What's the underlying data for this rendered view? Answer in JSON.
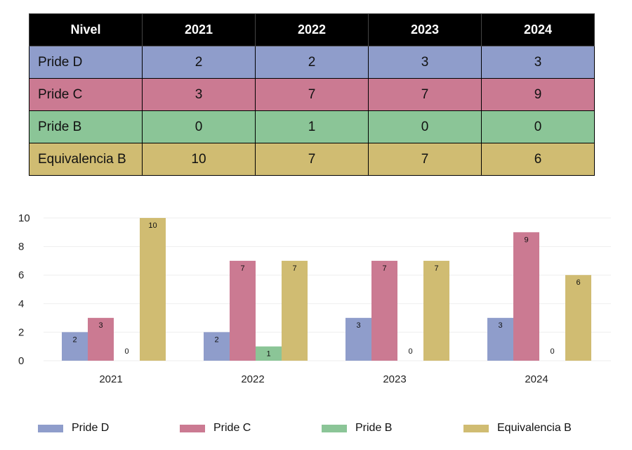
{
  "table": {
    "headers": [
      "Nivel",
      "2021",
      "2022",
      "2023",
      "2024"
    ],
    "rows": [
      {
        "label": "Pride D",
        "values": [
          "2",
          "2",
          "3",
          "3"
        ],
        "color": "#8f9dcb"
      },
      {
        "label": "Pride C",
        "values": [
          "3",
          "7",
          "7",
          "9"
        ],
        "color": "#cb7a92"
      },
      {
        "label": "Pride B",
        "values": [
          "0",
          "1",
          "0",
          "0"
        ],
        "color": "#8bc597"
      },
      {
        "label": "Equivalencia B",
        "values": [
          "10",
          "7",
          "7",
          "6"
        ],
        "color": "#d0bc72"
      }
    ]
  },
  "chart_data": {
    "type": "bar",
    "categories": [
      "2021",
      "2022",
      "2023",
      "2024"
    ],
    "series": [
      {
        "name": "Pride D",
        "values": [
          2,
          2,
          3,
          3
        ],
        "color": "#8f9dcb"
      },
      {
        "name": "Pride C",
        "values": [
          3,
          7,
          7,
          9
        ],
        "color": "#cb7a92"
      },
      {
        "name": "Pride B",
        "values": [
          0,
          1,
          0,
          0
        ],
        "color": "#8bc597"
      },
      {
        "name": "Equivalencia B",
        "values": [
          10,
          7,
          7,
          6
        ],
        "color": "#d0bc72"
      }
    ],
    "yticks": [
      0,
      2,
      4,
      6,
      8,
      10
    ],
    "ylim": [
      0,
      10
    ],
    "grid": true,
    "legend_position": "bottom",
    "data_labels": true
  }
}
